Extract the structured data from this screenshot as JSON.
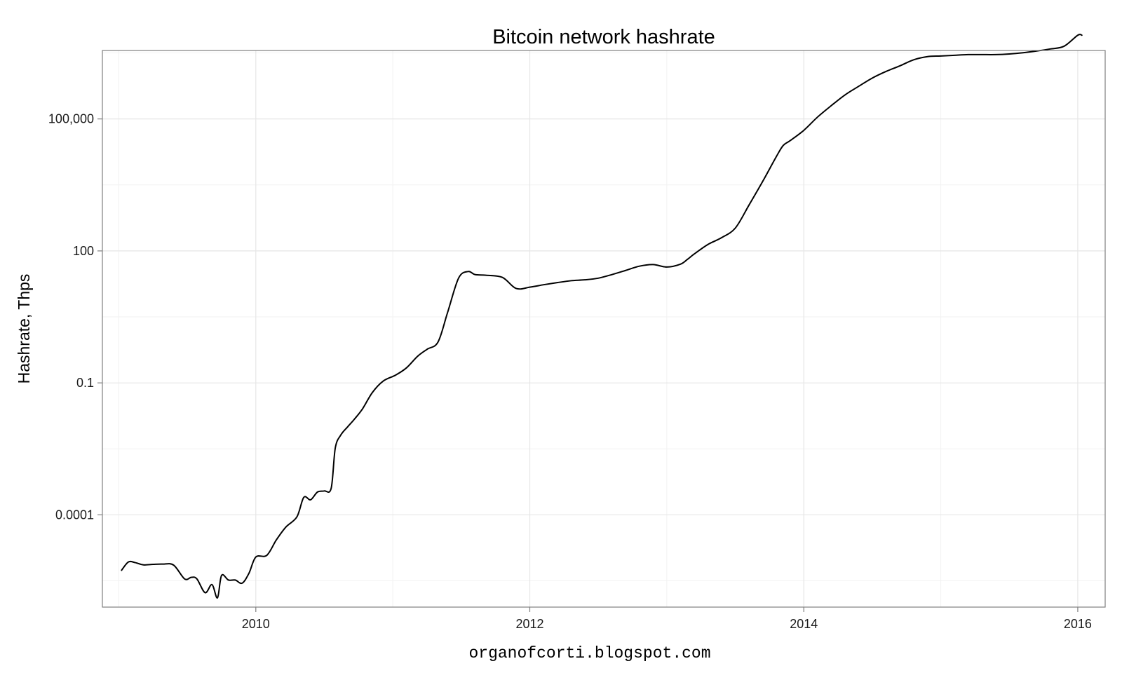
{
  "chart_data": {
    "type": "line",
    "title": "Bitcoin network hashrate",
    "xlabel": "organofcorti.blogspot.com",
    "ylabel": "Hashrate, Thps",
    "x_axis": {
      "type": "time",
      "range": [
        2008.88,
        2016.2
      ],
      "ticks": [
        2010,
        2012,
        2014,
        2016
      ],
      "tick_labels": [
        "2010",
        "2012",
        "2014",
        "2016"
      ]
    },
    "y_axis": {
      "scale": "log10",
      "range": [
        8e-07,
        3600000.0
      ],
      "ticks": [
        0.0001,
        0.1,
        100,
        100000
      ],
      "tick_labels": [
        "0.0001",
        "0.1",
        "100",
        "100,000"
      ]
    },
    "grid": true,
    "line_color": "#000000",
    "series": [
      {
        "x": [
          2009.02,
          2009.07,
          2009.12,
          2009.18,
          2009.25,
          2009.32,
          2009.4,
          2009.48,
          2009.53,
          2009.57,
          2009.63,
          2009.68,
          2009.72,
          2009.75,
          2009.8,
          2009.85,
          2009.9,
          2009.95,
          2010.0,
          2010.08,
          2010.15,
          2010.22,
          2010.3,
          2010.35,
          2010.4,
          2010.45,
          2010.5,
          2010.55,
          2010.58,
          2010.62,
          2010.67,
          2010.72,
          2010.78,
          2010.85,
          2010.93,
          2011.02,
          2011.1,
          2011.18,
          2011.25,
          2011.33,
          2011.4,
          2011.48,
          2011.55,
          2011.6,
          2011.68,
          2011.8,
          2011.9,
          2012.0,
          2012.1,
          2012.2,
          2012.3,
          2012.4,
          2012.5,
          2012.6,
          2012.7,
          2012.8,
          2012.9,
          2013.0,
          2013.1,
          2013.15,
          2013.2,
          2013.3,
          2013.4,
          2013.5,
          2013.6,
          2013.7,
          2013.8,
          2013.85,
          2013.9,
          2014.0,
          2014.1,
          2014.2,
          2014.3,
          2014.4,
          2014.5,
          2014.6,
          2014.7,
          2014.8,
          2014.9,
          2015.0,
          2015.1,
          2015.2,
          2015.3,
          2015.4,
          2015.5,
          2015.6,
          2015.7,
          2015.8,
          2015.9,
          2016.0,
          2016.03
        ],
        "y": [
          5.5e-06,
          8.5e-06,
          8.2e-06,
          7.3e-06,
          7.5e-06,
          7.6e-06,
          7.2e-06,
          3.5e-06,
          3.8e-06,
          3.5e-06,
          1.7e-06,
          2.6e-06,
          1.3e-06,
          4.2e-06,
          3.3e-06,
          3.3e-06,
          2.8e-06,
          4.7e-06,
          1.1e-05,
          1.2e-05,
          2.7e-05,
          5.3e-05,
          9e-05,
          0.00025,
          0.00022,
          0.00033,
          0.00035,
          0.0004,
          0.0033,
          0.0065,
          0.01,
          0.015,
          0.026,
          0.06,
          0.11,
          0.15,
          0.22,
          0.4,
          0.58,
          0.85,
          4.0,
          24,
          34,
          29,
          28,
          25,
          14,
          15,
          17,
          19,
          21,
          22,
          24,
          29,
          36,
          45,
          49,
          43,
          50,
          64,
          85,
          140,
          200,
          330,
          1100,
          3800,
          14000,
          25000,
          32000,
          55000,
          110000,
          200000,
          350000,
          550000,
          850000,
          1200000,
          1600000,
          2200000,
          2600000,
          2700000,
          2800000,
          2900000,
          2900000,
          2900000,
          3000000,
          3200000,
          3500000,
          3900000,
          4500000,
          8000000,
          8000000
        ]
      }
    ]
  }
}
